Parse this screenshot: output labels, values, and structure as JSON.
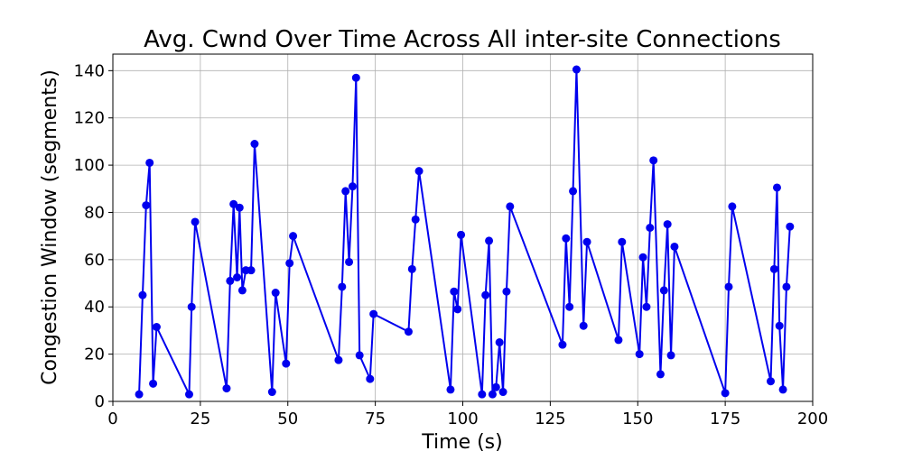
{
  "chart_data": {
    "type": "line",
    "title": "Avg. Cwnd Over Time Across All inter-site Connections",
    "xlabel": "Time (s)",
    "ylabel": "Congestion Window (segments)",
    "xlim": [
      0,
      200
    ],
    "ylim": [
      0,
      147
    ],
    "xticks": [
      0,
      25,
      50,
      75,
      100,
      125,
      150,
      175,
      200
    ],
    "yticks": [
      0,
      20,
      40,
      60,
      80,
      100,
      120,
      140
    ],
    "grid": true,
    "series": [
      {
        "color": "#0000ee",
        "marker": "circle",
        "x": [
          7.5,
          8.5,
          9.5,
          10.5,
          11.5,
          12.5,
          21.8,
          22.5,
          23.5,
          32.5,
          33.5,
          34.5,
          35.5,
          36.2,
          37,
          38,
          39.5,
          40.5,
          45.5,
          46.5,
          49.5,
          50.5,
          51.5,
          64.5,
          65.5,
          66.5,
          67.5,
          68.5,
          69.5,
          70.5,
          73.5,
          74.5,
          84.5,
          85.5,
          86.5,
          87.5,
          96.5,
          97.5,
          98.5,
          99.5,
          105.5,
          106.5,
          107.5,
          108.5,
          109.5,
          110.5,
          111.5,
          112.5,
          113.5,
          128.5,
          129.5,
          130.5,
          131.5,
          132.5,
          134.5,
          135.5,
          144.5,
          145.5,
          150.5,
          151.5,
          152.5,
          153.5,
          154.5,
          156.5,
          157.5,
          158.5,
          159.5,
          160.5,
          175,
          176,
          177,
          188,
          189,
          189.8,
          190.5,
          191.5,
          192.5,
          193.5
        ],
        "y": [
          3,
          45,
          83,
          101,
          7.5,
          31.5,
          3,
          40,
          76,
          5.5,
          51,
          83.5,
          52.5,
          82,
          47,
          55.5,
          55.5,
          109,
          4,
          46,
          16,
          58.5,
          70,
          17.5,
          48.5,
          89,
          59,
          91,
          137,
          19.5,
          9.5,
          37,
          29.5,
          56,
          77,
          97.5,
          5,
          46.5,
          39,
          70.5,
          3,
          45,
          68,
          3,
          6,
          25,
          4,
          46.5,
          82.5,
          24,
          69,
          40,
          89,
          140.5,
          32,
          67.5,
          26,
          67.5,
          20,
          61,
          40,
          73.5,
          102,
          11.5,
          47,
          75,
          19.5,
          65.5,
          3.5,
          48.5,
          82.5,
          8.5,
          56,
          90.5,
          32,
          5,
          48.5,
          74
        ]
      }
    ]
  }
}
